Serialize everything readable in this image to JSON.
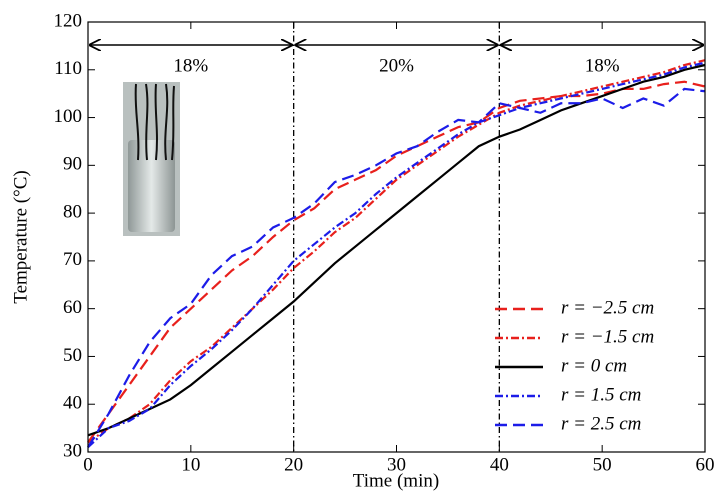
{
  "chart_data": {
    "type": "line",
    "x_label": "Time (min)",
    "y_label": "Temperature (°C)",
    "xlim": [
      0,
      60
    ],
    "ylim": [
      30,
      120
    ],
    "xticks": [
      0,
      10,
      20,
      30,
      40,
      50,
      60
    ],
    "yticks": [
      30,
      40,
      50,
      60,
      70,
      80,
      90,
      100,
      110,
      120
    ],
    "legend": "lower right",
    "vlines": [
      20,
      40
    ],
    "annotations": [
      {
        "text": "18%",
        "from": 0,
        "to": 20
      },
      {
        "text": "20%",
        "from": 20,
        "to": 40
      },
      {
        "text": "18%",
        "from": 40,
        "to": 60
      }
    ],
    "x": [
      0,
      2,
      4,
      6,
      8,
      10,
      12,
      14,
      16,
      18,
      20,
      22,
      24,
      26,
      28,
      30,
      32,
      34,
      36,
      38,
      40,
      42,
      44,
      46,
      48,
      50,
      52,
      54,
      56,
      58,
      60
    ],
    "series": [
      {
        "name": "r = −2.5 cm",
        "color": "#e8201c",
        "dash": "dashed",
        "values": [
          32,
          38,
          44,
          50,
          56,
          60,
          64,
          68,
          71,
          75,
          78.5,
          81,
          85,
          87,
          89,
          92,
          94,
          96,
          98,
          99,
          102,
          103.5,
          104,
          104.5,
          104.5,
          105,
          106,
          106,
          107,
          107.5,
          106.5
        ]
      },
      {
        "name": "r = −1.5 cm",
        "color": "#e8201c",
        "dash": "dashdot",
        "values": [
          32,
          35,
          37,
          40,
          45,
          49,
          52,
          56,
          60,
          64,
          68.5,
          72,
          76,
          79,
          83,
          87,
          90,
          93,
          96,
          98.5,
          101,
          102.5,
          103.5,
          104.5,
          105.5,
          106.5,
          107.5,
          108.5,
          109.5,
          111,
          112
        ]
      },
      {
        "name": "r = 0 cm",
        "color": "#000000",
        "dash": "solid",
        "values": [
          33.5,
          35,
          37,
          39,
          41,
          44,
          47.5,
          51,
          54.5,
          58,
          61.5,
          65.5,
          69.5,
          73,
          76.5,
          80,
          83.5,
          87,
          90.5,
          94,
          96,
          97.5,
          99.5,
          101.5,
          103,
          104.5,
          106,
          107.5,
          108.5,
          110,
          111
        ]
      },
      {
        "name": "r = 1.5 cm",
        "color": "#1c1ce8",
        "dash": "dashdot",
        "values": [
          31,
          35,
          36.5,
          39,
          44,
          48,
          51.5,
          55.5,
          60,
          65,
          70,
          73.5,
          77,
          80,
          84,
          87.5,
          90.5,
          93.5,
          96.5,
          99,
          100.5,
          102,
          103,
          104,
          105,
          106,
          107,
          108,
          109,
          110.5,
          111.5
        ]
      },
      {
        "name": "r = 2.5 cm",
        "color": "#1c1ce8",
        "dash": "dashed",
        "values": [
          31,
          38,
          46,
          53,
          58,
          61,
          67,
          71,
          73,
          77,
          79,
          82,
          86.5,
          88,
          90,
          92.5,
          94,
          97,
          99.5,
          99,
          103,
          102,
          101,
          103,
          103,
          104,
          102,
          104,
          102.5,
          106,
          105.5
        ]
      }
    ]
  }
}
